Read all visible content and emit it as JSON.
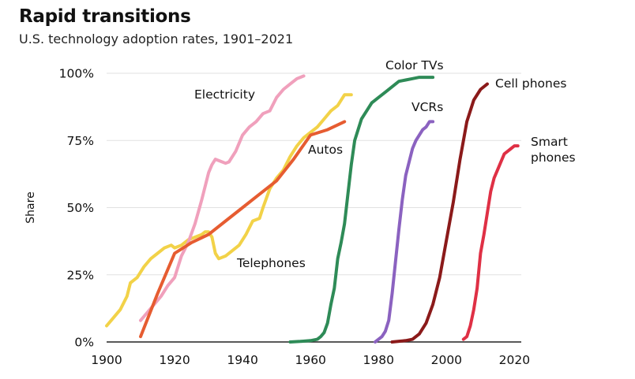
{
  "chart_data": {
    "type": "line",
    "title": "Rapid transitions",
    "subtitle": "U.S. technology adoption rates, 1901–2021",
    "xlabel": "",
    "ylabel": "Share",
    "xlim": [
      1900,
      2022
    ],
    "ylim": [
      0,
      100
    ],
    "x_ticks": [
      1900,
      1920,
      1940,
      1960,
      1980,
      2000,
      2020
    ],
    "y_ticks": [
      {
        "value": 0,
        "label": "0%"
      },
      {
        "value": 25,
        "label": "25%"
      },
      {
        "value": 50,
        "label": "50%"
      },
      {
        "value": 75,
        "label": "75%"
      },
      {
        "value": 100,
        "label": "100%"
      }
    ],
    "grid": "horizontal",
    "legend": "inline labels",
    "series": [
      {
        "name": "Telephones",
        "color": "#f2d248",
        "label_lines": [
          "Telephones"
        ],
        "points": [
          [
            1900,
            6
          ],
          [
            1902,
            9
          ],
          [
            1904,
            12
          ],
          [
            1906,
            17
          ],
          [
            1907,
            22
          ],
          [
            1909,
            24
          ],
          [
            1911,
            28
          ],
          [
            1913,
            31
          ],
          [
            1915,
            33
          ],
          [
            1917,
            35
          ],
          [
            1919,
            36
          ],
          [
            1920,
            35
          ],
          [
            1922,
            36
          ],
          [
            1924,
            38
          ],
          [
            1926,
            39
          ],
          [
            1928,
            40
          ],
          [
            1929,
            41
          ],
          [
            1930,
            41
          ],
          [
            1931,
            39
          ],
          [
            1932,
            33
          ],
          [
            1933,
            31
          ],
          [
            1935,
            32
          ],
          [
            1937,
            34
          ],
          [
            1939,
            36
          ],
          [
            1941,
            40
          ],
          [
            1943,
            45
          ],
          [
            1945,
            46
          ],
          [
            1946,
            50
          ],
          [
            1948,
            57
          ],
          [
            1950,
            61
          ],
          [
            1952,
            64
          ],
          [
            1954,
            69
          ],
          [
            1956,
            73
          ],
          [
            1958,
            76
          ],
          [
            1960,
            78
          ],
          [
            1962,
            80
          ],
          [
            1964,
            83
          ],
          [
            1966,
            86
          ],
          [
            1968,
            88
          ],
          [
            1970,
            92
          ],
          [
            1972,
            92
          ]
        ]
      },
      {
        "name": "Electricity",
        "color": "#f0a0bc",
        "label_lines": [
          "Electricity"
        ],
        "points": [
          [
            1910,
            8
          ],
          [
            1912,
            11
          ],
          [
            1914,
            14
          ],
          [
            1916,
            17
          ],
          [
            1918,
            21
          ],
          [
            1920,
            24
          ],
          [
            1922,
            32
          ],
          [
            1924,
            37
          ],
          [
            1926,
            44
          ],
          [
            1928,
            53
          ],
          [
            1930,
            63
          ],
          [
            1931,
            66
          ],
          [
            1932,
            68
          ],
          [
            1934,
            67
          ],
          [
            1935,
            66.5
          ],
          [
            1936,
            67
          ],
          [
            1938,
            71
          ],
          [
            1940,
            77
          ],
          [
            1942,
            80
          ],
          [
            1944,
            82
          ],
          [
            1946,
            85
          ],
          [
            1948,
            86
          ],
          [
            1950,
            91
          ],
          [
            1952,
            94
          ],
          [
            1954,
            96
          ],
          [
            1956,
            98
          ],
          [
            1958,
            99
          ]
        ]
      },
      {
        "name": "Autos",
        "color": "#e65c31",
        "label_lines": [
          "Autos"
        ],
        "points": [
          [
            1910,
            2
          ],
          [
            1915,
            18
          ],
          [
            1920,
            33
          ],
          [
            1925,
            37
          ],
          [
            1930,
            40
          ],
          [
            1935,
            45
          ],
          [
            1940,
            50
          ],
          [
            1945,
            55
          ],
          [
            1950,
            60
          ],
          [
            1955,
            68
          ],
          [
            1960,
            77
          ],
          [
            1965,
            79
          ],
          [
            1970,
            82
          ]
        ]
      },
      {
        "name": "Color TVs",
        "color": "#2e8b57",
        "label_lines": [
          "Color TVs"
        ],
        "points": [
          [
            1954,
            0
          ],
          [
            1957,
            0.2
          ],
          [
            1960,
            0.5
          ],
          [
            1962,
            1
          ],
          [
            1963,
            2
          ],
          [
            1964,
            3.5
          ],
          [
            1965,
            7
          ],
          [
            1966,
            14
          ],
          [
            1967,
            20
          ],
          [
            1968,
            31
          ],
          [
            1969,
            37
          ],
          [
            1970,
            44
          ],
          [
            1971,
            55
          ],
          [
            1972,
            66
          ],
          [
            1973,
            75
          ],
          [
            1974,
            79
          ],
          [
            1975,
            83
          ],
          [
            1977,
            87
          ],
          [
            1978,
            89
          ],
          [
            1980,
            91
          ],
          [
            1982,
            93
          ],
          [
            1984,
            95
          ],
          [
            1986,
            97
          ],
          [
            1988,
            97.5
          ],
          [
            1990,
            98
          ],
          [
            1992,
            98.5
          ],
          [
            1994,
            98.5
          ],
          [
            1996,
            98.5
          ]
        ]
      },
      {
        "name": "VCRs",
        "color": "#8b62c0",
        "label_lines": [
          "VCRs"
        ],
        "points": [
          [
            1979,
            0
          ],
          [
            1980,
            1
          ],
          [
            1981,
            2
          ],
          [
            1982,
            4
          ],
          [
            1983,
            8
          ],
          [
            1984,
            18
          ],
          [
            1985,
            30
          ],
          [
            1986,
            42
          ],
          [
            1987,
            53
          ],
          [
            1988,
            62
          ],
          [
            1989,
            67
          ],
          [
            1990,
            72
          ],
          [
            1991,
            75
          ],
          [
            1992,
            77
          ],
          [
            1993,
            79
          ],
          [
            1994,
            80
          ],
          [
            1995,
            82
          ],
          [
            1996,
            82
          ]
        ]
      },
      {
        "name": "Cell phones",
        "color": "#8b1a1a",
        "label_lines": [
          "Cell phones"
        ],
        "points": [
          [
            1984,
            0
          ],
          [
            1988,
            0.5
          ],
          [
            1990,
            1
          ],
          [
            1992,
            3
          ],
          [
            1994,
            7
          ],
          [
            1996,
            14
          ],
          [
            1998,
            24
          ],
          [
            2000,
            38
          ],
          [
            2002,
            52
          ],
          [
            2004,
            68
          ],
          [
            2006,
            82
          ],
          [
            2008,
            90
          ],
          [
            2010,
            94
          ],
          [
            2012,
            96
          ]
        ]
      },
      {
        "name": "Smartphones",
        "color": "#df3045",
        "label_lines": [
          "Smart",
          "phones"
        ],
        "points": [
          [
            2005,
            1
          ],
          [
            2006,
            2
          ],
          [
            2007,
            6
          ],
          [
            2008,
            12
          ],
          [
            2009,
            20
          ],
          [
            2010,
            33
          ],
          [
            2011,
            40
          ],
          [
            2012,
            48
          ],
          [
            2013,
            56
          ],
          [
            2014,
            61
          ],
          [
            2015,
            64
          ],
          [
            2016,
            67
          ],
          [
            2017,
            70
          ],
          [
            2018,
            71
          ],
          [
            2019,
            72
          ],
          [
            2020,
            73
          ],
          [
            2021,
            73
          ]
        ]
      }
    ]
  }
}
